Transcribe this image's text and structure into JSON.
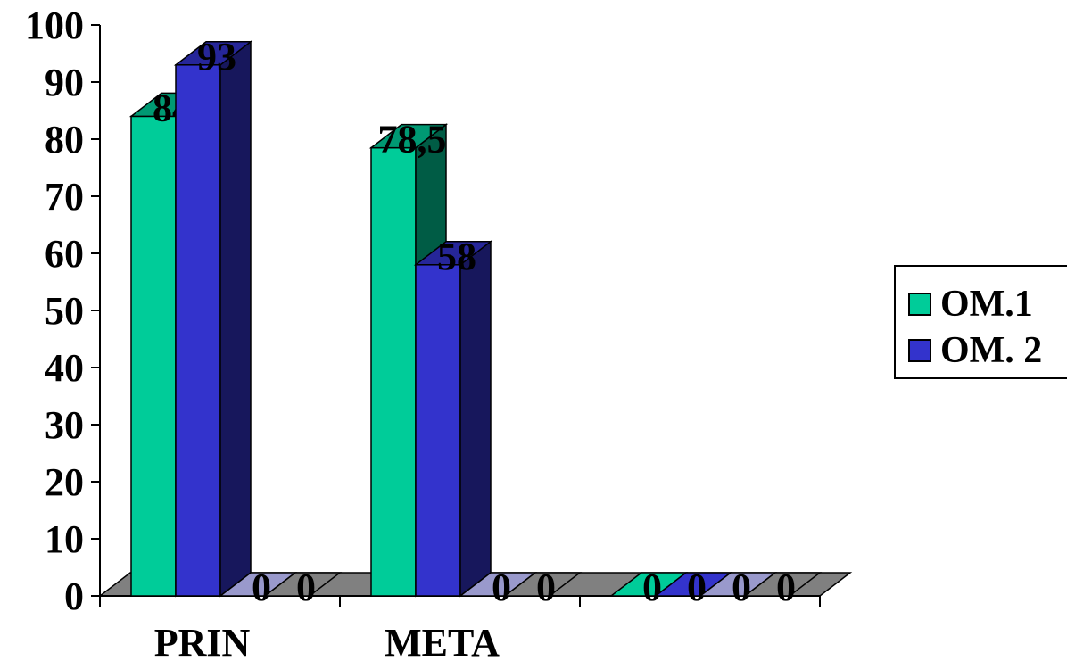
{
  "chart_data": {
    "type": "bar",
    "title": "",
    "xlabel": "",
    "ylabel": "",
    "ylim": [
      0,
      100
    ],
    "yticks": [
      "0",
      "10",
      "20",
      "30",
      "40",
      "50",
      "60",
      "70",
      "80",
      "90",
      "100"
    ],
    "categories": [
      "PRIN",
      "META",
      ""
    ],
    "series": [
      {
        "name": "OM.1",
        "color": "#00CC99",
        "values": [
          84,
          78.5,
          0
        ],
        "labels": [
          "84",
          "78,5",
          "0"
        ]
      },
      {
        "name": "OM. 2",
        "color": "#3333CC",
        "values": [
          93,
          58,
          0
        ],
        "labels": [
          "93",
          "58",
          "0"
        ]
      },
      {
        "name": "",
        "color": "#9999CC",
        "values": [
          0,
          0,
          0
        ],
        "labels": [
          "0",
          "0",
          "0"
        ]
      },
      {
        "name": "",
        "color": "#808080",
        "values": [
          0,
          0,
          0
        ],
        "labels": [
          "0",
          "0",
          "0"
        ]
      }
    ],
    "legend_position": "right",
    "grid": false,
    "style": "3d-clustered-column"
  }
}
